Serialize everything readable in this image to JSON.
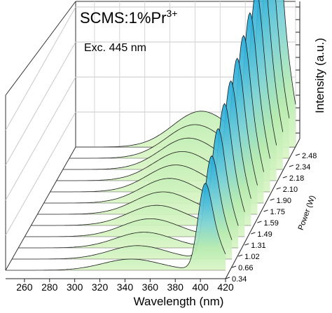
{
  "chart_data": {
    "type": "area",
    "title_main": "SCMS:1%Pr",
    "title_sup": "3+",
    "subtitle": "Exc. 445 nm",
    "xlabel": "Wavelength (nm)",
    "ylabel": "Intensity (a.u.)",
    "zlabel": "Power (W)",
    "x_ticks": [
      "260",
      "280",
      "300",
      "320",
      "340",
      "360",
      "380",
      "400",
      "420"
    ],
    "xlim": [
      245,
      420
    ],
    "z_ticks": [
      "0.34",
      "0.66",
      "1.02",
      "1.31",
      "1.49",
      "1.59",
      "1.75",
      "1.90",
      "2.10",
      "2.18",
      "2.34",
      "2.48"
    ],
    "grid": true,
    "colors": {
      "low_intensity": "#c6efac",
      "high_intensity": "#1fa9dc",
      "outline": "#1a1a1a"
    },
    "series": [
      {
        "power_W": 0.34,
        "broad_band": 0.05,
        "peak_400": 0.38
      },
      {
        "power_W": 0.66,
        "broad_band": 0.06,
        "peak_400": 0.45
      },
      {
        "power_W": 1.02,
        "broad_band": 0.07,
        "peak_400": 0.52
      },
      {
        "power_W": 1.31,
        "broad_band": 0.08,
        "peak_400": 0.58
      },
      {
        "power_W": 1.49,
        "broad_band": 0.09,
        "peak_400": 0.63
      },
      {
        "power_W": 1.59,
        "broad_band": 0.1,
        "peak_400": 0.68
      },
      {
        "power_W": 1.75,
        "broad_band": 0.11,
        "peak_400": 0.73
      },
      {
        "power_W": 1.9,
        "broad_band": 0.12,
        "peak_400": 0.78
      },
      {
        "power_W": 2.1,
        "broad_band": 0.13,
        "peak_400": 0.83
      },
      {
        "power_W": 2.18,
        "broad_band": 0.14,
        "peak_400": 0.88
      },
      {
        "power_W": 2.34,
        "broad_band": 0.15,
        "peak_400": 0.94
      },
      {
        "power_W": 2.48,
        "broad_band": 0.16,
        "peak_400": 1.0
      }
    ]
  }
}
